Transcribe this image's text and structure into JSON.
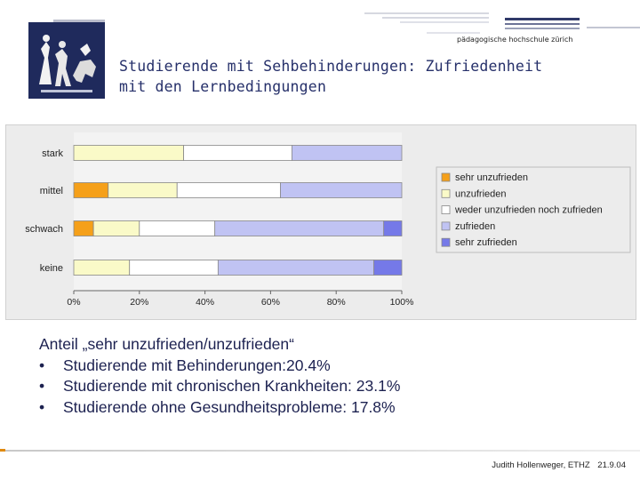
{
  "header": {
    "brand": "pädagogische hochschule zürich",
    "title_line1": "Studierende mit Sehbehinderungen: Zufriedenheit",
    "title_line2": "mit den Lernbedingungen"
  },
  "chart_data": {
    "type": "bar",
    "orientation": "horizontal",
    "stacked": "percent",
    "categories": [
      "stark",
      "mittel",
      "schwach",
      "keine"
    ],
    "series": [
      {
        "name": "sehr unzufrieden",
        "color": "#f5a01a",
        "values": [
          0,
          10.5,
          6,
          0
        ]
      },
      {
        "name": "unzufrieden",
        "color": "#fafac8",
        "values": [
          33.5,
          21,
          14,
          17
        ]
      },
      {
        "name": "weder unzufrieden noch zufrieden",
        "color": "#ffffff",
        "values": [
          33,
          31.5,
          23,
          27
        ]
      },
      {
        "name": "zufrieden",
        "color": "#c0c3f3",
        "values": [
          33.5,
          37,
          51.5,
          47.5
        ]
      },
      {
        "name": "sehr zufrieden",
        "color": "#7579e8",
        "values": [
          0,
          0,
          5.5,
          8.5
        ]
      }
    ],
    "xlim": [
      0,
      100
    ],
    "xticks": [
      "0%",
      "20%",
      "40%",
      "60%",
      "80%",
      "100%"
    ],
    "legend_position": "right",
    "grid": false
  },
  "notes": {
    "heading": "Anteil „sehr unzufrieden/unzufrieden“",
    "bullet_symbol": "•",
    "items": [
      "Studierende mit Behinderungen:20.4%",
      "Studierende mit chronischen Krankheiten: 23.1%",
      "Studierende ohne Gesundheitsprobleme: 17.8%"
    ]
  },
  "footer": {
    "author": "Judith Hollenweger, ETHZ",
    "date": "21.9.04"
  }
}
